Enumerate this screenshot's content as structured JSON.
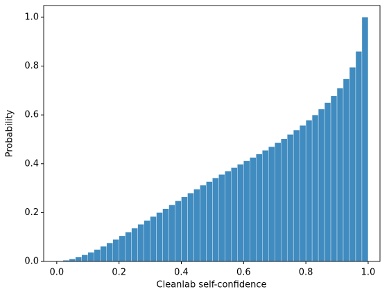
{
  "chart_data": {
    "type": "histogram",
    "xlabel": "Cleanlab self-confidence",
    "ylabel": "Probability",
    "bins": [
      0,
      0.02,
      0.04,
      0.06,
      0.08,
      0.1,
      0.12,
      0.14,
      0.16,
      0.18,
      0.2,
      0.22,
      0.24,
      0.26,
      0.28,
      0.3,
      0.32,
      0.34,
      0.36,
      0.38,
      0.4,
      0.42,
      0.44,
      0.46,
      0.48,
      0.5,
      0.52,
      0.54,
      0.56,
      0.58,
      0.6,
      0.62,
      0.64,
      0.66,
      0.68,
      0.7,
      0.72,
      0.74,
      0.76,
      0.78,
      0.8,
      0.82,
      0.84,
      0.86,
      0.88,
      0.9,
      0.92,
      0.94,
      0.96,
      0.98,
      1
    ],
    "values": [
      0.002,
      0.005,
      0.01,
      0.018,
      0.027,
      0.037,
      0.049,
      0.062,
      0.076,
      0.09,
      0.105,
      0.12,
      0.136,
      0.152,
      0.168,
      0.184,
      0.2,
      0.216,
      0.232,
      0.248,
      0.264,
      0.28,
      0.296,
      0.312,
      0.327,
      0.342,
      0.356,
      0.37,
      0.384,
      0.398,
      0.412,
      0.426,
      0.44,
      0.455,
      0.47,
      0.486,
      0.502,
      0.52,
      0.538,
      0.557,
      0.578,
      0.6,
      0.624,
      0.65,
      0.678,
      0.71,
      0.748,
      0.795,
      0.86,
      1.0
    ],
    "color": "#1f77b4",
    "xlim": [
      -0.042,
      1.038
    ],
    "ylim": [
      0,
      1.048
    ],
    "xticks": [
      {
        "value": 0,
        "label": "0.0"
      },
      0.2,
      0.4,
      0.6,
      0.8,
      {
        "value": 1,
        "label": "1.0"
      }
    ],
    "yticks": [
      {
        "value": 0,
        "label": "0.0"
      },
      0.2,
      0.4,
      0.6,
      0.8,
      {
        "value": 1,
        "label": "1.0"
      }
    ]
  }
}
